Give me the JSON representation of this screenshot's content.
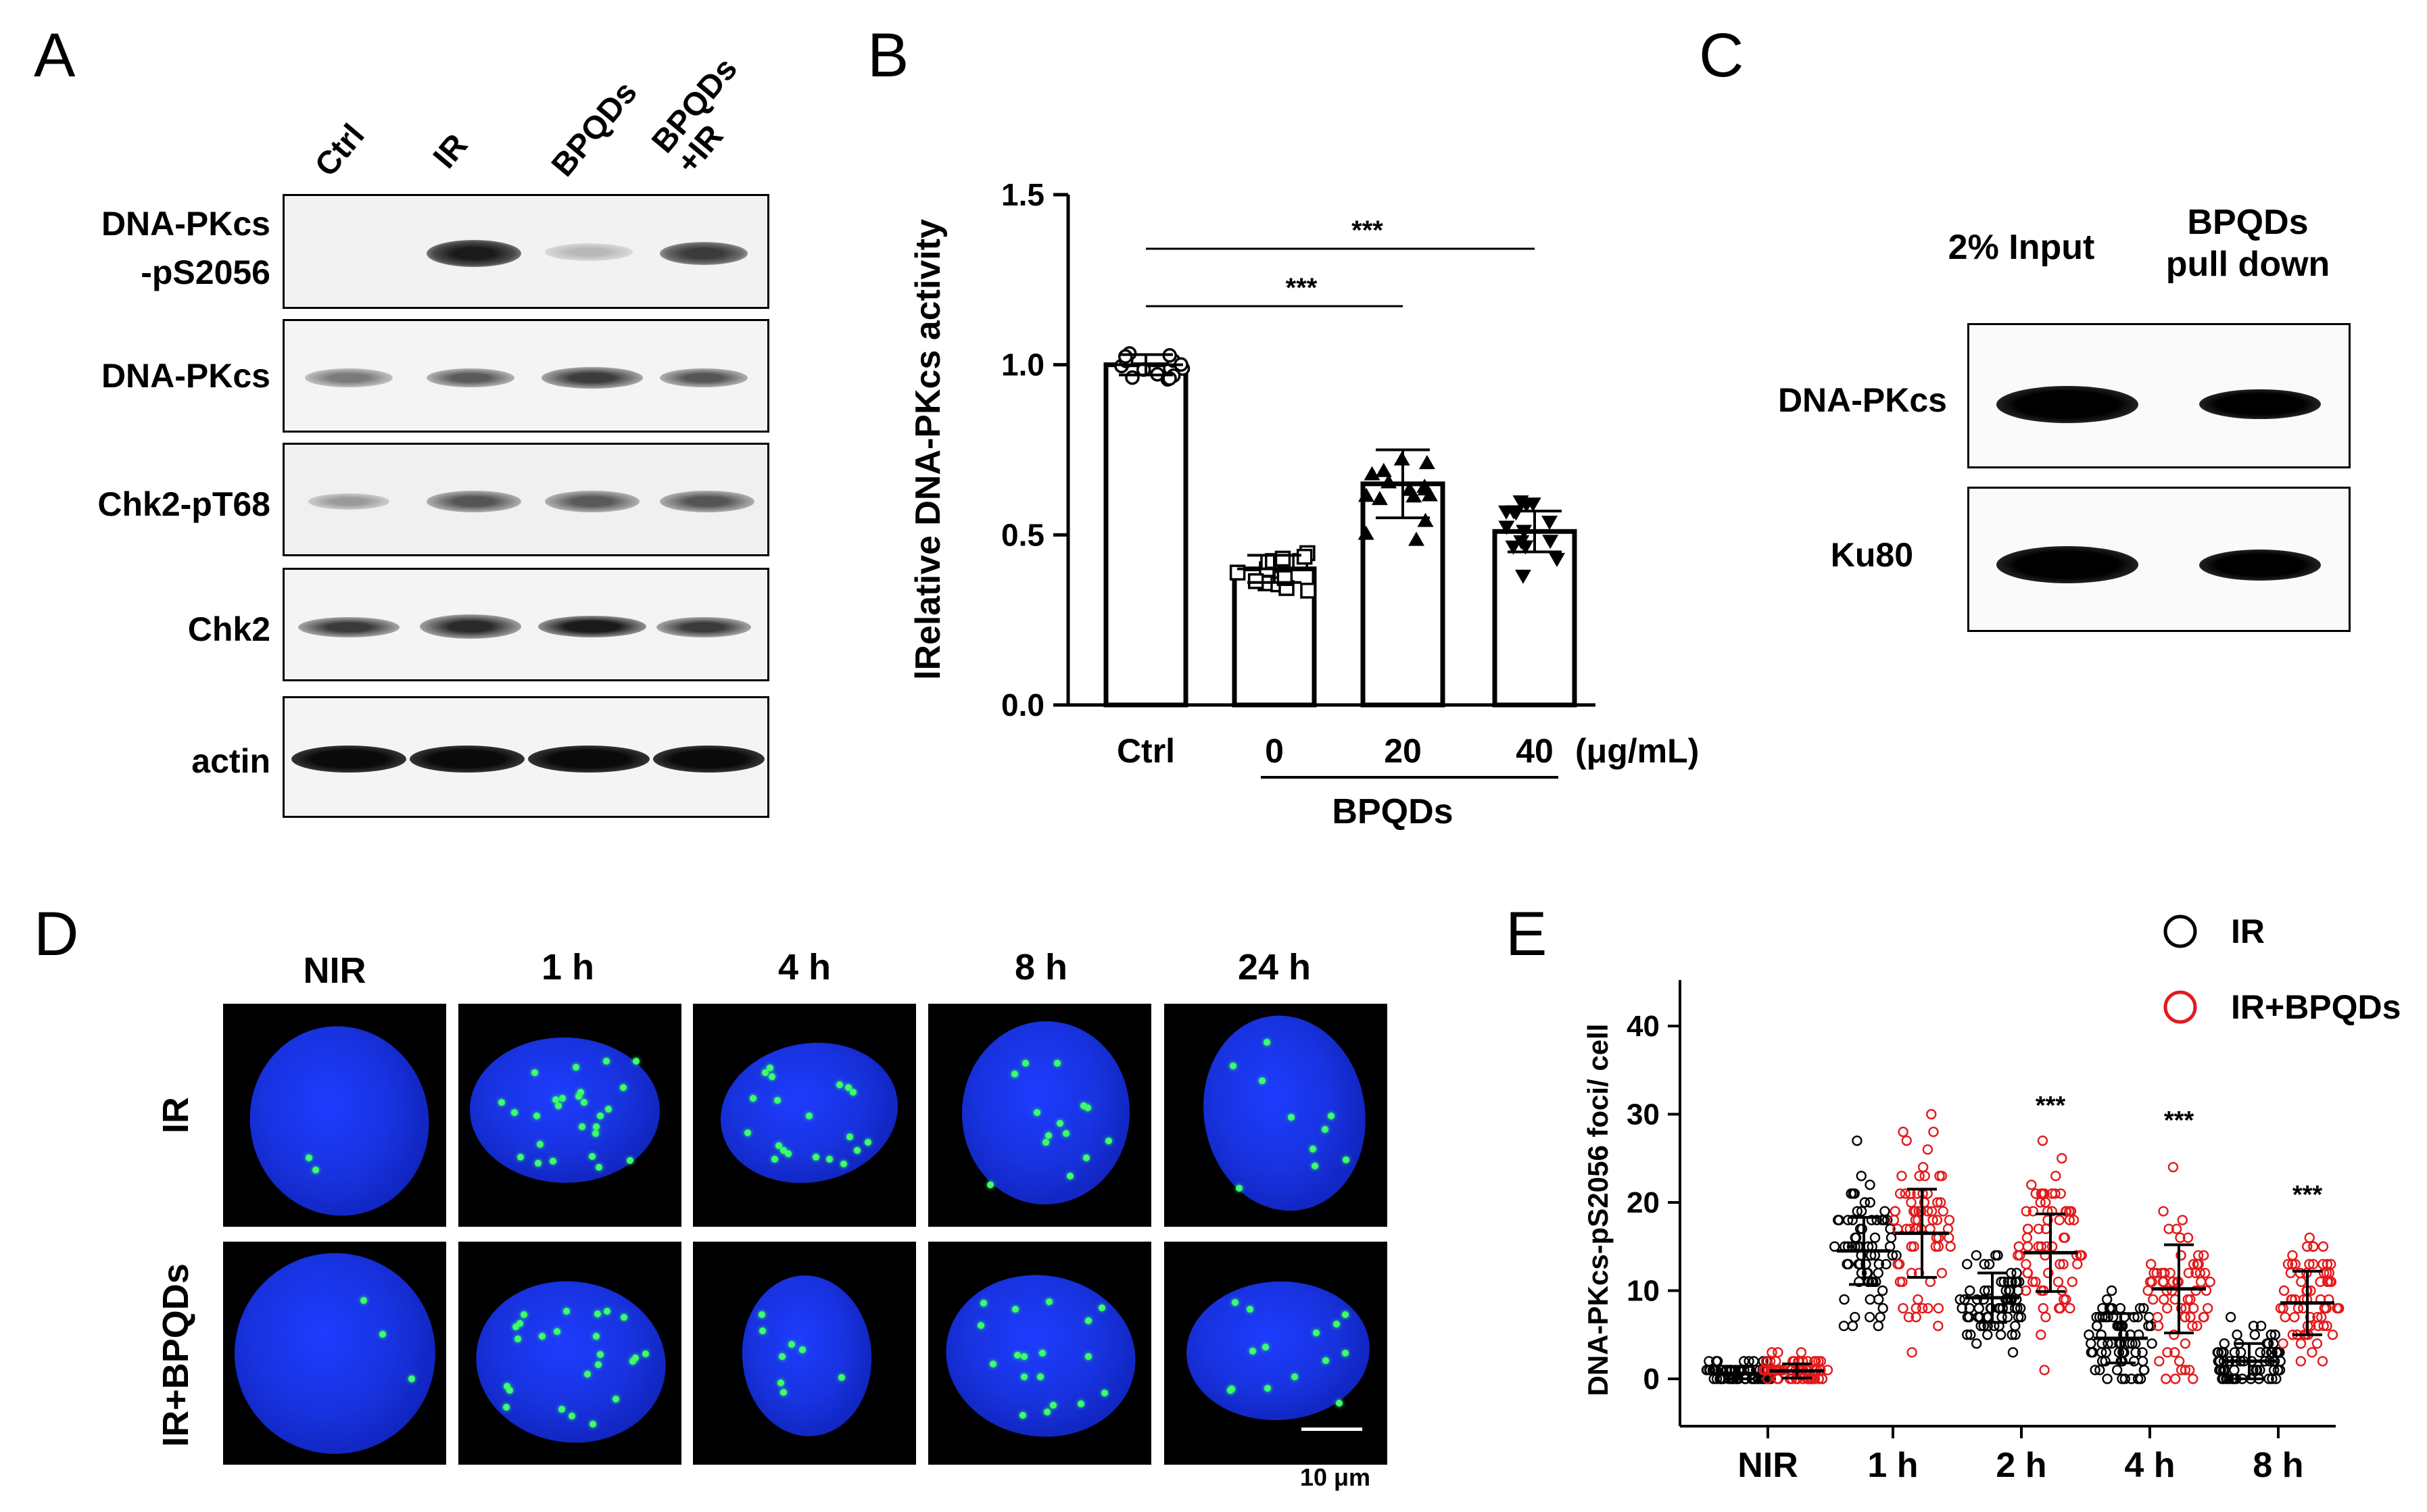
{
  "panels": {
    "a": "A",
    "b": "B",
    "c": "C",
    "d": "D",
    "e": "E"
  },
  "panel_a": {
    "lanes": [
      "Ctrl",
      "IR",
      "BPQDs",
      "BPQDs\n+IR"
    ],
    "rows": [
      {
        "label": "DNA-PKcs\n-pS2056"
      },
      {
        "label": "DNA-PKcs"
      },
      {
        "label": "Chk2-pT68"
      },
      {
        "label": "Chk2"
      },
      {
        "label": "actin"
      }
    ]
  },
  "panel_c": {
    "col1": "2% Input",
    "col2": "BPQDs\npull down",
    "rows": [
      "DNA-PKcs",
      "Ku80"
    ]
  },
  "panel_d": {
    "columns": [
      "NIR",
      "1 h",
      "4 h",
      "8 h",
      "24 h"
    ],
    "rows": [
      "IR",
      "IR+BPQDs"
    ],
    "scale_bar": "10 μm"
  },
  "chart_data": [
    {
      "type": "bar",
      "ylabel": "lRelative DNA-PKcs activity",
      "ylim": [
        0,
        1.5
      ],
      "yticks": [
        "0.0",
        "0.5",
        "1.0",
        "1.5"
      ],
      "categories": [
        "Ctrl",
        "0",
        "20",
        "40"
      ],
      "unit": "(μg/mL)",
      "group_label": "BPQDs",
      "values": [
        1.0,
        0.4,
        0.65,
        0.51
      ],
      "errors": [
        0.03,
        0.04,
        0.1,
        0.06
      ],
      "markers": [
        "circle",
        "square",
        "triangle-up",
        "triangle-down"
      ],
      "significance": [
        {
          "from": "Ctrl",
          "to": "40",
          "label": "***"
        },
        {
          "from": "Ctrl",
          "to": "20",
          "label": "***"
        }
      ]
    },
    {
      "type": "scatter",
      "ylabel": "DNA-PKcs-pS2056 foci/ cell",
      "ylim": [
        0,
        45
      ],
      "yticks": [
        "0",
        "10",
        "20",
        "30",
        "40"
      ],
      "categories": [
        "NIR",
        "1 h",
        "2 h",
        "4 h",
        "8 h"
      ],
      "legend": [
        "IR",
        "IR+BPQDs"
      ],
      "legend_position": "top-right",
      "series": [
        {
          "name": "IR",
          "color": "#000000",
          "means": [
            0.6,
            14.5,
            9.2,
            4.6,
            2.0
          ],
          "sd": [
            0.8,
            3.8,
            2.8,
            2.8,
            2.0
          ]
        },
        {
          "name": "IR+BPQDs",
          "color": "#e31a1c",
          "means": [
            0.9,
            16.5,
            14.3,
            10.2,
            8.6
          ],
          "sd": [
            0.8,
            5.0,
            4.4,
            5.0,
            3.6
          ]
        }
      ],
      "significance": [
        "",
        "",
        "***",
        "***",
        "***"
      ]
    }
  ]
}
